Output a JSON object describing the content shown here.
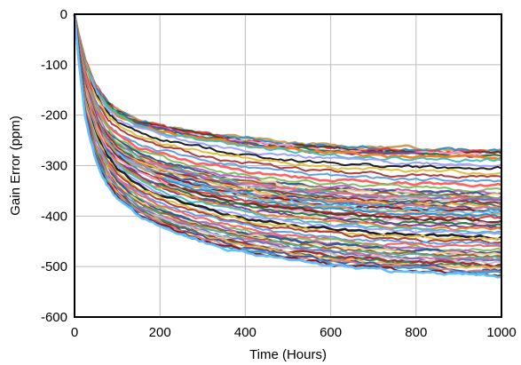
{
  "chart_data": {
    "type": "line",
    "title": "",
    "xlabel": "Time (Hours)",
    "ylabel": "Gain Error (ppm)",
    "xlim": [
      0,
      1000
    ],
    "ylim": [
      -600,
      0
    ],
    "x_ticks": [
      0,
      200,
      400,
      600,
      800,
      1000
    ],
    "x_tick_labels": [
      "0",
      "200",
      "400",
      "600",
      "800",
      "1000"
    ],
    "y_ticks": [
      0,
      -100,
      -200,
      -300,
      -400,
      -500,
      -600
    ],
    "y_tick_labels": [
      "0",
      "-100",
      "-200",
      "-300",
      "-400",
      "-500",
      "-600"
    ],
    "grid": true,
    "legend": "none",
    "x": [
      0,
      10,
      25,
      50,
      75,
      100,
      150,
      200,
      250,
      300,
      350,
      400,
      450,
      500,
      550,
      600,
      650,
      700,
      750,
      800,
      850,
      900,
      950,
      1000
    ],
    "series_band": {
      "description": "many overlapping unit traces; each trace decays from 0 ppm at 0 h",
      "final_values_ppm_min": -525,
      "final_values_ppm_max": -265,
      "representative": [
        {
          "values": [
            0,
            -40,
            -90,
            -140,
            -170,
            -190,
            -210,
            -220,
            -228,
            -235,
            -240,
            -245,
            -250,
            -255,
            -258,
            -260,
            -262,
            -263,
            -264,
            -265,
            -266,
            -267,
            -268,
            -268
          ]
        },
        {
          "values": [
            0,
            -45,
            -100,
            -150,
            -180,
            -200,
            -220,
            -232,
            -240,
            -248,
            -255,
            -260,
            -266,
            -270,
            -274,
            -277,
            -280,
            -282,
            -284,
            -285,
            -286,
            -287,
            -288,
            -288
          ]
        },
        {
          "values": [
            0,
            -60,
            -130,
            -190,
            -230,
            -250,
            -275,
            -290,
            -300,
            -310,
            -318,
            -325,
            -330,
            -335,
            -339,
            -342,
            -345,
            -347,
            -349,
            -350,
            -351,
            -352,
            -353,
            -353
          ]
        },
        {
          "values": [
            0,
            -65,
            -140,
            -200,
            -240,
            -265,
            -290,
            -305,
            -318,
            -328,
            -336,
            -343,
            -349,
            -354,
            -358,
            -362,
            -365,
            -367,
            -369,
            -370,
            -371,
            -372,
            -373,
            -373
          ]
        },
        {
          "values": [
            0,
            -70,
            -150,
            -215,
            -255,
            -280,
            -305,
            -322,
            -335,
            -346,
            -355,
            -362,
            -368,
            -373,
            -377,
            -381,
            -384,
            -387,
            -389,
            -391,
            -392,
            -393,
            -394,
            -395
          ]
        },
        {
          "values": [
            0,
            -75,
            -160,
            -230,
            -270,
            -295,
            -325,
            -345,
            -360,
            -372,
            -382,
            -390,
            -397,
            -403,
            -408,
            -412,
            -416,
            -419,
            -421,
            -423,
            -425,
            -426,
            -427,
            -428
          ]
        },
        {
          "values": [
            0,
            -85,
            -180,
            -260,
            -300,
            -330,
            -365,
            -385,
            -400,
            -412,
            -422,
            -430,
            -437,
            -443,
            -448,
            -452,
            -456,
            -459,
            -461,
            -463,
            -465,
            -466,
            -467,
            -468
          ]
        },
        {
          "values": [
            0,
            -90,
            -195,
            -275,
            -320,
            -350,
            -385,
            -405,
            -420,
            -433,
            -444,
            -453,
            -460,
            -466,
            -471,
            -476,
            -480,
            -483,
            -486,
            -488,
            -490,
            -491,
            -492,
            -493
          ]
        },
        {
          "values": [
            0,
            -95,
            -205,
            -290,
            -335,
            -365,
            -400,
            -420,
            -438,
            -452,
            -463,
            -472,
            -480,
            -487,
            -493,
            -498,
            -502,
            -506,
            -509,
            -512,
            -514,
            -516,
            -518,
            -520
          ]
        }
      ]
    }
  }
}
